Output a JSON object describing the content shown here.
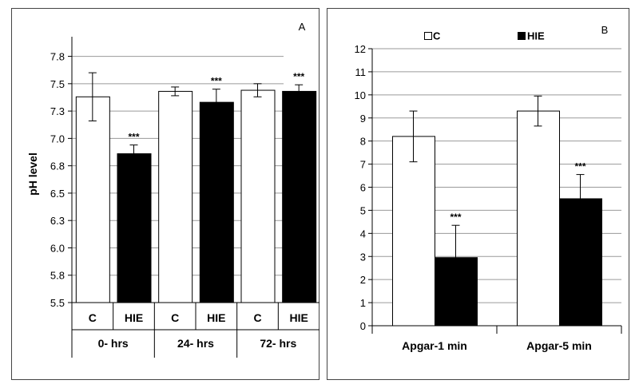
{
  "chart_data": [
    {
      "type": "bar",
      "panel_label": "A",
      "ylabel": "pH level",
      "ylim": [
        5.5,
        7.9
      ],
      "yticks": [
        "5.5",
        "5.8",
        "6.0",
        "6.3",
        "6.5",
        "6.8",
        "7.0",
        "7.3",
        "7.5",
        "7.8"
      ],
      "ytick_values": [
        5.5,
        5.75,
        6.0,
        6.25,
        6.5,
        6.75,
        7.0,
        7.25,
        7.5,
        7.75
      ],
      "categories": [
        "C",
        "HIE",
        "C",
        "HIE",
        "C",
        "HIE"
      ],
      "groups": [
        "0- hrs",
        "24- hrs",
        "72- hrs"
      ],
      "values": [
        7.38,
        6.86,
        7.43,
        7.33,
        7.44,
        7.43
      ],
      "errors": [
        0.22,
        0.08,
        0.04,
        0.12,
        0.06,
        0.06
      ],
      "colors": [
        "#ffffff",
        "#000000",
        "#ffffff",
        "#000000",
        "#ffffff",
        "#000000"
      ],
      "annotations": [
        "",
        "***",
        "",
        "***",
        "",
        "***"
      ],
      "grid": true
    },
    {
      "type": "bar",
      "panel_label": "B",
      "ylim": [
        0,
        12
      ],
      "yticks": [
        "0",
        "1",
        "2",
        "3",
        "4",
        "5",
        "6",
        "7",
        "8",
        "9",
        "10",
        "11",
        "12"
      ],
      "categories": [
        "Apgar-1 min",
        "Apgar-5 min"
      ],
      "series": [
        {
          "name": "C",
          "color": "#ffffff",
          "values": [
            8.2,
            9.3
          ],
          "errors": [
            1.1,
            0.65
          ],
          "annotations": [
            "",
            ""
          ]
        },
        {
          "name": "HIE",
          "color": "#000000",
          "values": [
            2.95,
            5.5
          ],
          "errors": [
            1.4,
            1.05
          ],
          "annotations": [
            "***",
            "***"
          ]
        }
      ],
      "legend": "top",
      "grid": true
    }
  ]
}
